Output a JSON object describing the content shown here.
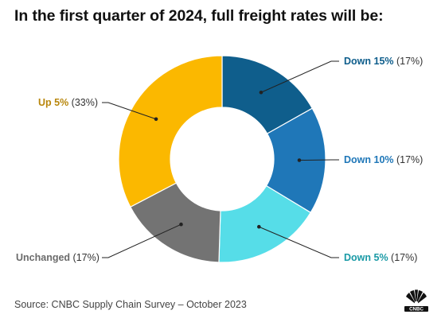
{
  "title": "In the first quarter of 2024, full freight rates will be:",
  "source": "Source: CNBC Supply Chain Survey – October 2023",
  "logo": {
    "icon": "peacock-logo-icon",
    "text": "CNBC"
  },
  "chart_data": {
    "type": "pie",
    "donut": true,
    "slices": [
      {
        "label": "Down 15%",
        "pct_label": "(17%)",
        "value": 17,
        "color": "#0f5e8c",
        "label_color": "#0f5e8c"
      },
      {
        "label": "Down 10%",
        "pct_label": "(17%)",
        "value": 17,
        "color": "#1f77b8",
        "label_color": "#1f77b8"
      },
      {
        "label": "Down 5%",
        "pct_label": "(17%)",
        "value": 17,
        "color": "#56dde8",
        "label_color": "#1a9aa6"
      },
      {
        "label": "Unchanged",
        "pct_label": "(17%)",
        "value": 17,
        "color": "#737373",
        "label_color": "#6b6b6b"
      },
      {
        "label": "Up 5%",
        "pct_label": "(33%)",
        "value": 33,
        "color": "#fbb800",
        "label_color": "#b8860b"
      }
    ]
  }
}
